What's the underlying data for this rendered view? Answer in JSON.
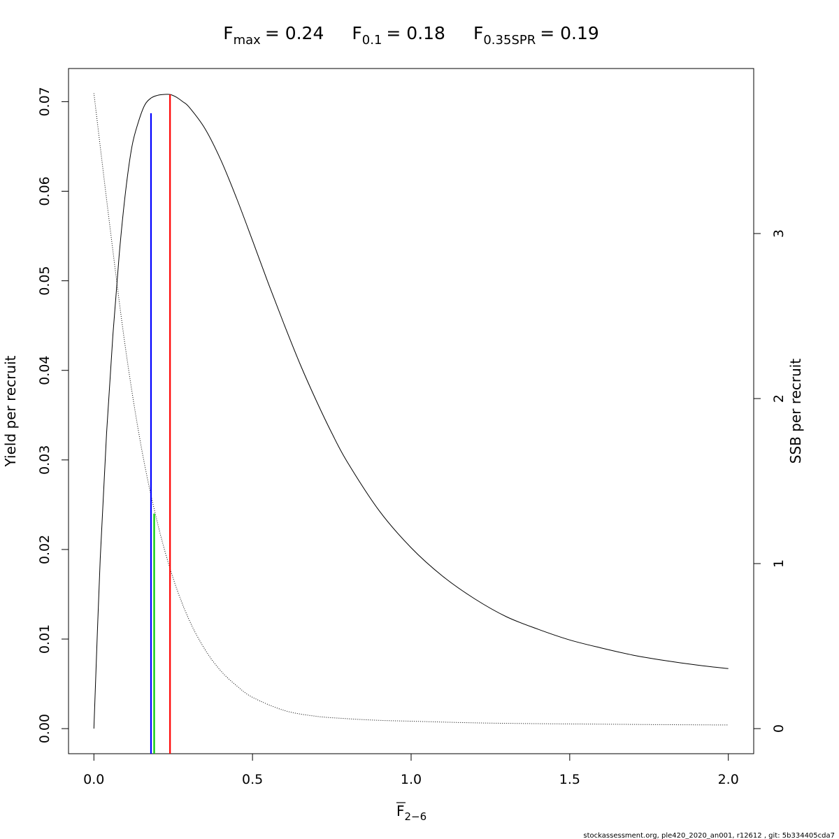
{
  "chart_data": {
    "type": "line",
    "title": {
      "parts": [
        {
          "base": "F",
          "sub": "max",
          "value": "= 0.24"
        },
        {
          "base": "F",
          "sub": "0.1",
          "value": "= 0.18"
        },
        {
          "base": "F",
          "sub": "0.35SPR",
          "value": "= 0.19"
        }
      ]
    },
    "xlabel": {
      "base": "F",
      "sub": "2−6"
    },
    "ylabel": "Yield per recruit",
    "ylabel_right": "SSB per recruit",
    "xlim": [
      -0.08,
      2.08
    ],
    "ylim": [
      -0.0028,
      0.0737
    ],
    "ylim_right": [
      -0.152,
      4.0
    ],
    "x_ticks": [
      0.0,
      0.5,
      1.0,
      1.5,
      2.0
    ],
    "x_tick_labels": [
      "0.0",
      "0.5",
      "1.0",
      "1.5",
      "2.0"
    ],
    "y_ticks": [
      0.0,
      0.01,
      0.02,
      0.03,
      0.04,
      0.05,
      0.06,
      0.07
    ],
    "y_tick_labels": [
      "0.00",
      "0.01",
      "0.02",
      "0.03",
      "0.04",
      "0.05",
      "0.06",
      "0.07"
    ],
    "y_right_ticks": [
      0,
      1,
      2,
      3
    ],
    "y_right_tick_labels": [
      "0",
      "1",
      "2",
      "3"
    ],
    "grid": false,
    "series": [
      {
        "axis": "left",
        "style": "solid",
        "color": "#000000",
        "x": [
          0.0,
          0.02,
          0.04,
          0.06,
          0.08,
          0.1,
          0.12,
          0.14,
          0.16,
          0.18,
          0.2,
          0.22,
          0.24,
          0.26,
          0.28,
          0.3,
          0.35,
          0.4,
          0.45,
          0.5,
          0.55,
          0.6,
          0.65,
          0.7,
          0.75,
          0.8,
          0.9,
          1.0,
          1.1,
          1.2,
          1.3,
          1.4,
          1.5,
          1.6,
          1.7,
          1.8,
          1.9,
          2.0
        ],
        "y": [
          0.0,
          0.019,
          0.033,
          0.044,
          0.053,
          0.06,
          0.065,
          0.0677,
          0.0696,
          0.0704,
          0.0707,
          0.0708,
          0.0708,
          0.0705,
          0.07,
          0.0694,
          0.067,
          0.0635,
          0.0592,
          0.0545,
          0.0497,
          0.0451,
          0.0407,
          0.0367,
          0.033,
          0.0297,
          0.0243,
          0.0202,
          0.017,
          0.0145,
          0.0125,
          0.0111,
          0.0099,
          0.009,
          0.0082,
          0.0076,
          0.0071,
          0.0067
        ]
      },
      {
        "axis": "right",
        "style": "dotted",
        "color": "#000000",
        "x": [
          0.0,
          0.05,
          0.1,
          0.15,
          0.2,
          0.25,
          0.3,
          0.35,
          0.4,
          0.45,
          0.5,
          0.6,
          0.7,
          0.8,
          0.9,
          1.0,
          1.2,
          1.4,
          1.6,
          1.8,
          2.0
        ],
        "y": [
          3.85,
          3.05,
          2.3,
          1.7,
          1.25,
          0.91,
          0.66,
          0.48,
          0.35,
          0.26,
          0.19,
          0.11,
          0.075,
          0.06,
          0.05,
          0.045,
          0.035,
          0.03,
          0.027,
          0.024,
          0.022
        ]
      }
    ],
    "reference_lines": [
      {
        "x": 0.18,
        "y_top": 0.0687,
        "color": "#0000ff"
      },
      {
        "x": 0.19,
        "y_top": 0.024,
        "color": "#00cc00"
      },
      {
        "x": 0.24,
        "y_top": 0.0708,
        "color": "#ff0000"
      }
    ]
  },
  "footer": "stockassessment.org, ple420_2020_an001, r12612 , git: 5b334405cda7"
}
